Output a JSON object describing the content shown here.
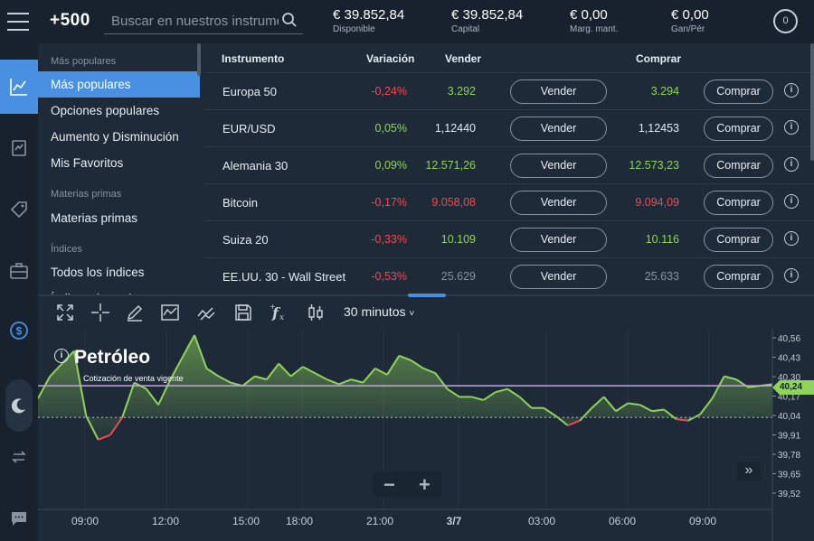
{
  "header": {
    "logo": "+500",
    "search": {
      "placeholder": "Buscar en nuestros instrumentos"
    },
    "stats": [
      {
        "value": "€ 39.852,84",
        "label": "Disponible"
      },
      {
        "value": "€ 39.852,84",
        "label": "Capital"
      },
      {
        "value": "€ 0,00",
        "label": "Marg. mant."
      },
      {
        "value": "€ 0,00",
        "label": "Gan/Pér"
      }
    ],
    "notifications": "0"
  },
  "rail": {
    "items": [
      "chart-line-icon",
      "transfer-icon",
      "tag-icon",
      "briefcase-icon",
      "dollar-icon",
      "moon-icon",
      "swap-icon",
      "chat-icon"
    ]
  },
  "menu": {
    "section_popular": "Más populares",
    "items_popular": [
      "Más populares",
      "Opciones populares",
      "Aumento y Disminución",
      "Mis Favoritos"
    ],
    "section_commodities": "Materias primas",
    "items_commodities": [
      "Materias primas"
    ],
    "section_indices": "Índices",
    "items_indices": [
      "Todos los índices",
      "Índices de acciones"
    ]
  },
  "table": {
    "headers": {
      "instrument": "Instrumento",
      "change": "Variación",
      "sell": "Vender",
      "buy": "Comprar"
    },
    "sell_button": "Vender",
    "buy_button": "Comprar",
    "info": "i",
    "rows": [
      {
        "name": "Europa 50",
        "change": "-0,24%",
        "sell": "3.292",
        "buy": "3.294",
        "change_color": "red",
        "sell_color": "green",
        "buy_color": "green"
      },
      {
        "name": "EUR/USD",
        "change": "0,05%",
        "sell": "1,12440",
        "buy": "1,12453",
        "change_color": "green",
        "sell_color": "white",
        "buy_color": "white"
      },
      {
        "name": "Alemania 30",
        "change": "0,09%",
        "sell": "12.571,26",
        "buy": "12.573,23",
        "change_color": "green",
        "sell_color": "green",
        "buy_color": "green"
      },
      {
        "name": "Bitcoin",
        "change": "-0,17%",
        "sell": "9.058,08",
        "buy": "9.094,09",
        "change_color": "red",
        "sell_color": "red",
        "buy_color": "red"
      },
      {
        "name": "Suiza 20",
        "change": "-0,33%",
        "sell": "10.109",
        "buy": "10.116",
        "change_color": "red",
        "sell_color": "green",
        "buy_color": "green"
      },
      {
        "name": "EE.UU. 30 - Wall Street",
        "change": "-0,53%",
        "sell": "25.629",
        "buy": "25.633",
        "change_color": "red",
        "sell_color": "grey",
        "buy_color": "grey"
      }
    ]
  },
  "chart_toolbar": {
    "tools": [
      "expand-icon",
      "crosshair-icon",
      "draw-icon",
      "indicator-icon",
      "trend-icon",
      "save-icon",
      "function-icon",
      "candlestick-icon"
    ],
    "timeframe": "30 minutos",
    "timeframe_caret": "˅"
  },
  "chart": {
    "title": "Petróleo",
    "info": "i",
    "subtitle": "Cotización de venta vigente",
    "zoom_out": "−",
    "zoom_in": "+",
    "scroll_right": "»",
    "current_price_label": "40,24",
    "colors": {
      "up": "#8fd45a",
      "down": "#f04a4f",
      "price_line": "#c8a2e8",
      "baseline": "#8793a0"
    }
  },
  "chart_data": {
    "type": "area",
    "title": "Petróleo",
    "subtitle": "Cotización de venta vigente",
    "y_ticks": [
      "40,56",
      "40,43",
      "40,30",
      "40,17",
      "40,04",
      "39,91",
      "39,78",
      "39,65",
      "39,52"
    ],
    "x_ticks": [
      "09:00",
      "12:00",
      "15:00",
      "18:00",
      "21:00",
      "3/7",
      "03:00",
      "06:00",
      "09:00"
    ],
    "ylim": [
      39.46,
      40.6
    ],
    "current_price": 40.24,
    "baseline": 40.04,
    "series": [
      {
        "values": [
          40.16,
          40.3,
          40.38,
          40.46,
          40.05,
          39.9,
          39.93,
          40.04,
          40.26,
          40.22,
          40.12,
          40.28,
          40.42,
          40.56,
          40.35,
          40.3,
          40.26,
          40.24,
          40.3,
          40.28,
          40.38,
          40.3,
          40.36,
          40.32,
          40.28,
          40.25,
          40.28,
          40.26,
          40.35,
          40.31,
          40.43,
          40.4,
          40.35,
          40.32,
          40.22,
          40.17,
          40.17,
          40.15,
          40.2,
          40.22,
          40.17,
          40.1,
          40.1,
          40.05,
          39.99,
          40.02,
          40.1,
          40.17,
          40.08,
          40.13,
          40.12,
          40.08,
          40.09,
          40.03,
          40.02,
          40.06,
          40.16,
          40.3,
          40.28,
          40.23,
          40.24,
          40.25
        ]
      }
    ]
  }
}
